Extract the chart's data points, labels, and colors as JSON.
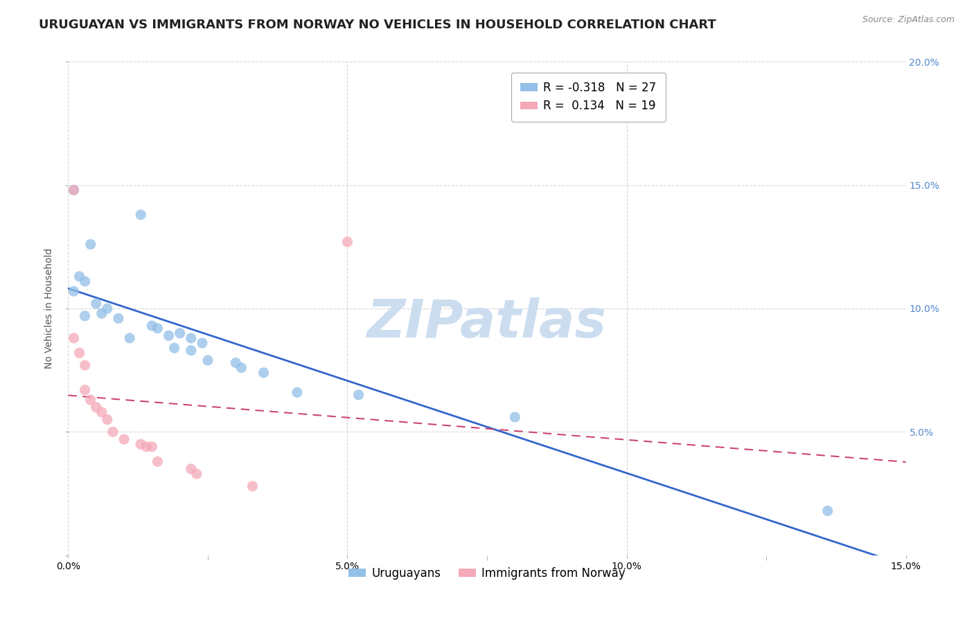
{
  "title": "URUGUAYAN VS IMMIGRANTS FROM NORWAY NO VEHICLES IN HOUSEHOLD CORRELATION CHART",
  "source": "Source: ZipAtlas.com",
  "ylabel_label": "No Vehicles in Household",
  "watermark": "ZIPatlas",
  "uruguayan_points": [
    [
      0.001,
      0.148
    ],
    [
      0.013,
      0.138
    ],
    [
      0.004,
      0.126
    ],
    [
      0.002,
      0.113
    ],
    [
      0.003,
      0.111
    ],
    [
      0.001,
      0.107
    ],
    [
      0.005,
      0.102
    ],
    [
      0.007,
      0.1
    ],
    [
      0.006,
      0.098
    ],
    [
      0.003,
      0.097
    ],
    [
      0.009,
      0.096
    ],
    [
      0.015,
      0.093
    ],
    [
      0.016,
      0.092
    ],
    [
      0.02,
      0.09
    ],
    [
      0.018,
      0.089
    ],
    [
      0.011,
      0.088
    ],
    [
      0.022,
      0.088
    ],
    [
      0.024,
      0.086
    ],
    [
      0.019,
      0.084
    ],
    [
      0.022,
      0.083
    ],
    [
      0.025,
      0.079
    ],
    [
      0.03,
      0.078
    ],
    [
      0.031,
      0.076
    ],
    [
      0.035,
      0.074
    ],
    [
      0.041,
      0.066
    ],
    [
      0.052,
      0.065
    ],
    [
      0.08,
      0.056
    ],
    [
      0.136,
      0.018
    ]
  ],
  "norway_points": [
    [
      0.001,
      0.148
    ],
    [
      0.001,
      0.088
    ],
    [
      0.002,
      0.082
    ],
    [
      0.003,
      0.077
    ],
    [
      0.003,
      0.067
    ],
    [
      0.004,
      0.063
    ],
    [
      0.005,
      0.06
    ],
    [
      0.006,
      0.058
    ],
    [
      0.007,
      0.055
    ],
    [
      0.008,
      0.05
    ],
    [
      0.01,
      0.047
    ],
    [
      0.013,
      0.045
    ],
    [
      0.014,
      0.044
    ],
    [
      0.015,
      0.044
    ],
    [
      0.016,
      0.038
    ],
    [
      0.022,
      0.035
    ],
    [
      0.023,
      0.033
    ],
    [
      0.033,
      0.028
    ],
    [
      0.05,
      0.127
    ]
  ],
  "blue_color": "#92c0e8",
  "pink_color": "#f4a8b8",
  "blue_line_color": "#3366cc",
  "pink_line_color": "#cc4477",
  "grid_color": "#cccccc",
  "background_color": "#ffffff",
  "watermark_color": "#ccddf0",
  "title_fontsize": 13,
  "axis_fontsize": 10,
  "legend_fontsize": 12,
  "xmin": 0.0,
  "xmax": 0.15,
  "ymin": 0.0,
  "ymax": 0.2
}
